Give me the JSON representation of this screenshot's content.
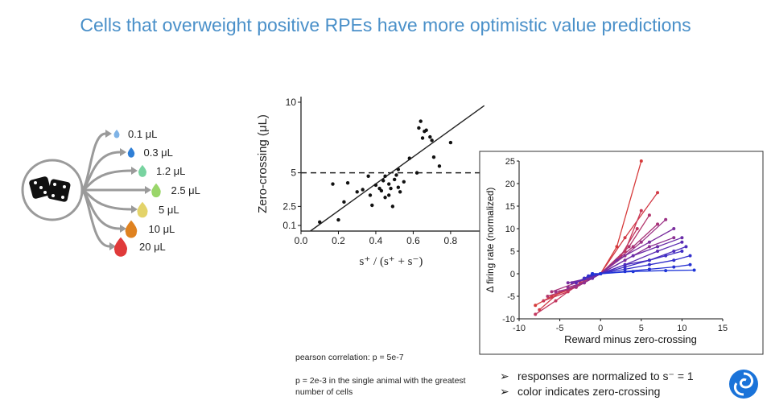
{
  "title": "Cells that overweight positive RPEs have more optimistic value predictions",
  "rewards": [
    {
      "label": "0.1 μL",
      "color": "#7fb3e6"
    },
    {
      "label": "0.3 μL",
      "color": "#2f7fd6"
    },
    {
      "label": "1.2 μL",
      "color": "#78d3a0"
    },
    {
      "label": "2.5 μL",
      "color": "#9ad66a"
    },
    {
      "label": "5 μL",
      "color": "#e3d36a"
    },
    {
      "label": "10 μL",
      "color": "#df8220"
    },
    {
      "label": "20 μL",
      "color": "#e03a3a"
    }
  ],
  "icons": {
    "dice": "dice-icon",
    "logo": "deepmind-logo-icon"
  },
  "notes": {
    "pearson": "pearson correlation: p = 5e-7",
    "single_animal": "p = 2e-3 in the single animal with the greatest number of cells"
  },
  "bullets": [
    "responses are normalized to s⁻ = 1",
    "color indicates zero-crossing"
  ],
  "chart_data": [
    {
      "type": "scatter",
      "xlabel": "s⁺ / (s⁺ + s⁻)",
      "ylabel": "Zero-crossing (μL)",
      "x_ticks": [
        "0.0",
        "0.2",
        "0.4",
        "0.6",
        "0.8"
      ],
      "y_ticks": [
        "0.1",
        "2.5",
        "5",
        "10"
      ],
      "xlim": [
        0.0,
        1.05
      ],
      "ylim": [
        0,
        12
      ],
      "dashed_reference_y": 5,
      "points": [
        [
          0.1,
          0.8
        ],
        [
          0.17,
          4.2
        ],
        [
          0.2,
          1.0
        ],
        [
          0.23,
          2.6
        ],
        [
          0.25,
          4.3
        ],
        [
          0.3,
          3.5
        ],
        [
          0.33,
          3.7
        ],
        [
          0.36,
          4.9
        ],
        [
          0.37,
          3.2
        ],
        [
          0.38,
          2.3
        ],
        [
          0.4,
          4.1
        ],
        [
          0.42,
          3.8
        ],
        [
          0.43,
          3.6
        ],
        [
          0.44,
          4.5
        ],
        [
          0.45,
          3.0
        ],
        [
          0.45,
          4.9
        ],
        [
          0.47,
          4.2
        ],
        [
          0.47,
          3.2
        ],
        [
          0.48,
          3.8
        ],
        [
          0.49,
          2.2
        ],
        [
          0.5,
          4.6
        ],
        [
          0.51,
          5.0
        ],
        [
          0.52,
          3.9
        ],
        [
          0.52,
          5.5
        ],
        [
          0.53,
          3.5
        ],
        [
          0.55,
          4.4
        ],
        [
          0.58,
          6.5
        ],
        [
          0.62,
          5.2
        ],
        [
          0.63,
          9.2
        ],
        [
          0.64,
          9.8
        ],
        [
          0.66,
          8.9
        ],
        [
          0.67,
          9.0
        ],
        [
          0.69,
          8.4
        ],
        [
          0.7,
          8.1
        ],
        [
          0.71,
          6.6
        ],
        [
          0.74,
          5.8
        ],
        [
          0.8,
          7.9
        ],
        [
          0.65,
          8.3
        ]
      ],
      "fit_line": [
        [
          0.05,
          0
        ],
        [
          1.05,
          12
        ]
      ]
    },
    {
      "type": "line",
      "xlabel": "Reward minus zero-crossing",
      "ylabel": "Δ firing rate (normalized)",
      "x_ticks": [
        "-10",
        "-5",
        "0",
        "5",
        "10",
        "15"
      ],
      "y_ticks": [
        "-10",
        "-5",
        "0",
        "5",
        "10",
        "15",
        "20",
        "25"
      ],
      "xlim": [
        -10,
        15
      ],
      "ylim": [
        -10,
        25
      ],
      "series_color_range": [
        "#e02020",
        "#1a2bd6"
      ],
      "series": [
        {
          "color": "#d63a3a",
          "values": [
            [
              -8,
              -7
            ],
            [
              -6,
              -5
            ],
            [
              -3,
              -3
            ],
            [
              0,
              0
            ],
            [
              2,
              6
            ],
            [
              5,
              25
            ]
          ]
        },
        {
          "color": "#d23a46",
          "values": [
            [
              -7.5,
              -8
            ],
            [
              -5,
              -4
            ],
            [
              -2,
              -2
            ],
            [
              0,
              0
            ],
            [
              3,
              8
            ],
            [
              7,
              18
            ]
          ]
        },
        {
          "color": "#c93856",
          "values": [
            [
              -7,
              -6
            ],
            [
              -4,
              -4
            ],
            [
              -1.5,
              -1
            ],
            [
              0,
              0
            ],
            [
              3,
              5
            ],
            [
              5,
              14
            ]
          ]
        },
        {
          "color": "#c2385f",
          "values": [
            [
              -8,
              -9
            ],
            [
              -5.5,
              -6
            ],
            [
              -2.5,
              -2
            ],
            [
              0,
              0
            ],
            [
              2.5,
              4
            ],
            [
              4.5,
              10
            ]
          ]
        },
        {
          "color": "#b3366c",
          "values": [
            [
              -6.5,
              -5
            ],
            [
              -4,
              -3.5
            ],
            [
              -1,
              -1
            ],
            [
              0,
              0
            ],
            [
              3.5,
              6
            ],
            [
              6,
              13
            ]
          ]
        },
        {
          "color": "#a83378",
          "values": [
            [
              -6,
              -4
            ],
            [
              -3,
              -2
            ],
            [
              0,
              0
            ],
            [
              2,
              3
            ],
            [
              4,
              6
            ],
            [
              7,
              11
            ]
          ]
        },
        {
          "color": "#9c3286",
          "values": [
            [
              -5.5,
              -4
            ],
            [
              -3,
              -3
            ],
            [
              0,
              0
            ],
            [
              3,
              4
            ],
            [
              5,
              7
            ],
            [
              8,
              12
            ]
          ]
        },
        {
          "color": "#8c3092",
          "values": [
            [
              -4,
              -3
            ],
            [
              -2,
              -2
            ],
            [
              0,
              0
            ],
            [
              3,
              3
            ],
            [
              6,
              6
            ],
            [
              9,
              8
            ]
          ]
        },
        {
          "color": "#7a2e9e",
          "values": [
            [
              -4,
              -2
            ],
            [
              -1.5,
              -1
            ],
            [
              0,
              0
            ],
            [
              2,
              3
            ],
            [
              6,
              7
            ],
            [
              9,
              10
            ]
          ]
        },
        {
          "color": "#6a2ca8",
          "values": [
            [
              -3.5,
              -2
            ],
            [
              -1,
              -1
            ],
            [
              0,
              0
            ],
            [
              4,
              4
            ],
            [
              7,
              6
            ],
            [
              10,
              8
            ]
          ]
        },
        {
          "color": "#5a2ab2",
          "values": [
            [
              -3,
              -2
            ],
            [
              -1,
              0
            ],
            [
              0,
              0
            ],
            [
              3,
              2
            ],
            [
              7,
              5
            ],
            [
              10,
              7
            ]
          ]
        },
        {
          "color": "#4c2cbc",
          "values": [
            [
              -2,
              -1
            ],
            [
              0,
              0
            ],
            [
              3,
              2
            ],
            [
              6,
              3
            ],
            [
              9,
              5
            ],
            [
              10.5,
              6
            ]
          ]
        },
        {
          "color": "#3e2ec4",
          "values": [
            [
              -2,
              -1
            ],
            [
              0,
              0
            ],
            [
              3,
              1.5
            ],
            [
              6,
              3
            ],
            [
              8,
              4
            ],
            [
              10,
              5
            ]
          ]
        },
        {
          "color": "#322fcc",
          "values": [
            [
              -1.5,
              -0.5
            ],
            [
              0,
              0
            ],
            [
              3,
              1
            ],
            [
              6,
              2
            ],
            [
              9,
              3
            ],
            [
              11,
              4
            ]
          ]
        },
        {
          "color": "#2631d2",
          "values": [
            [
              -1,
              0
            ],
            [
              0,
              0
            ],
            [
              3,
              0.5
            ],
            [
              6,
              1
            ],
            [
              9,
              1.5
            ],
            [
              11,
              2
            ]
          ]
        },
        {
          "color": "#1e35d8",
          "values": [
            [
              -1,
              0
            ],
            [
              0,
              0
            ],
            [
              4,
              0.5
            ],
            [
              8,
              0.7
            ],
            [
              11.5,
              0.8
            ]
          ]
        }
      ]
    }
  ]
}
